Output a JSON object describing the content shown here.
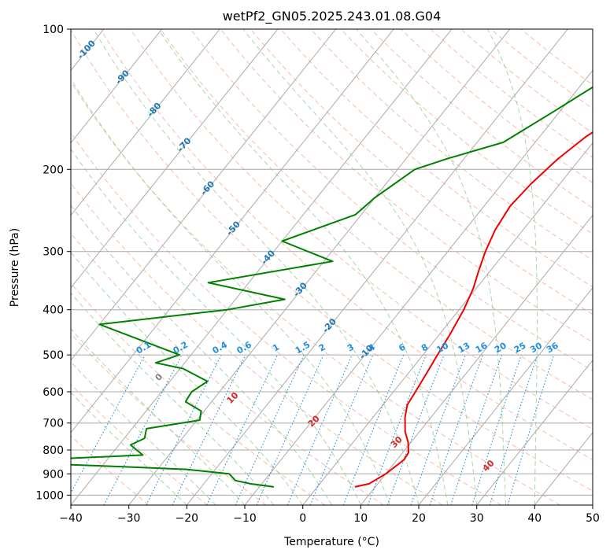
{
  "chart_data": {
    "type": "line",
    "title": "wetPf2_GN05.2025.243.01.08.G04",
    "xlabel": "Temperature (°C)",
    "ylabel": "Pressure (hPa)",
    "xlim": [
      -40,
      50
    ],
    "ylim": [
      1050,
      100
    ],
    "y_scale": "log",
    "grid": true,
    "x_ticks": [
      -40,
      -30,
      -20,
      -10,
      0,
      10,
      20,
      30,
      40,
      50
    ],
    "y_ticks": [
      100,
      200,
      300,
      400,
      500,
      600,
      700,
      800,
      900,
      1000
    ],
    "colors": {
      "temperature": "#ee0000",
      "dewpoint": "#008000",
      "isotherm": "#a8a8a8",
      "dry_adiabat": "#f4a080",
      "moist_adiabat": "#8cc88c",
      "mixing_ratio": "#1f8fe0",
      "isotherm_label": "#1f77b4",
      "dry_adiabat_label": "#d62728",
      "zero_label": "#7f7f7f"
    },
    "series": [
      {
        "key": "temperature",
        "points": [
          [
            6.5,
            960
          ],
          [
            8.5,
            945
          ],
          [
            10,
            900
          ],
          [
            11.2,
            840
          ],
          [
            11,
            810
          ],
          [
            9.5,
            770
          ],
          [
            7.5,
            730
          ],
          [
            5.5,
            680
          ],
          [
            4.2,
            640
          ],
          [
            3.8,
            600
          ],
          [
            3.2,
            550
          ],
          [
            2.5,
            500
          ],
          [
            1.8,
            450
          ],
          [
            0.8,
            400
          ],
          [
            -0.5,
            360
          ],
          [
            -2,
            330
          ],
          [
            -3.5,
            300
          ],
          [
            -4.8,
            270
          ],
          [
            -5.5,
            240
          ],
          [
            -5,
            215
          ],
          [
            -3.8,
            190
          ],
          [
            -2,
            170
          ],
          [
            0.5,
            155
          ],
          [
            2.5,
            140
          ],
          [
            4.5,
            125
          ],
          [
            5.5,
            115
          ],
          [
            7,
            105
          ],
          [
            8.5,
            100
          ]
        ]
      },
      {
        "key": "dewpoint",
        "points": [
          [
            -7.5,
            960
          ],
          [
            -12,
            945
          ],
          [
            -15,
            930
          ],
          [
            -17,
            900
          ],
          [
            -25,
            880
          ],
          [
            -35,
            870
          ],
          [
            -46,
            860
          ],
          [
            -48,
            835
          ],
          [
            -34.5,
            820
          ],
          [
            -38,
            780
          ],
          [
            -36.5,
            755
          ],
          [
            -37.5,
            720
          ],
          [
            -29.5,
            690
          ],
          [
            -30.5,
            660
          ],
          [
            -34.5,
            630
          ],
          [
            -34.8,
            600
          ],
          [
            -33.5,
            570
          ],
          [
            -39.5,
            535
          ],
          [
            -45,
            520
          ],
          [
            -42,
            500
          ],
          [
            -60,
            430
          ],
          [
            -40,
            400
          ],
          [
            -31.5,
            380
          ],
          [
            -47,
            350
          ],
          [
            -28.5,
            315
          ],
          [
            -40,
            285
          ],
          [
            -31,
            250
          ],
          [
            -30,
            230
          ],
          [
            -27,
            200
          ],
          [
            -23,
            190
          ],
          [
            -15.5,
            175
          ],
          [
            -11,
            150
          ],
          [
            -7,
            130
          ],
          [
            -3,
            115
          ],
          [
            0,
            100
          ]
        ]
      }
    ],
    "isotherm_labels": [
      -100,
      -90,
      -80,
      -70,
      -60,
      -50,
      -40,
      -30,
      -20,
      -10
    ],
    "mixing_ratio_labels": [
      "0.1",
      "0.2",
      "0.4",
      "0.6",
      "1",
      "1.5",
      "2",
      "3",
      "4",
      "6",
      "8",
      "10",
      "13",
      "16",
      "20",
      "25",
      "30",
      "36"
    ],
    "mixing_ratios": [
      0.1,
      0.2,
      0.4,
      0.6,
      1,
      1.5,
      2,
      3,
      4,
      6,
      8,
      10,
      13,
      16,
      20,
      25,
      30,
      36
    ],
    "dry_adiabat_labels": [
      "0",
      "10",
      "20",
      "30",
      "40"
    ]
  }
}
